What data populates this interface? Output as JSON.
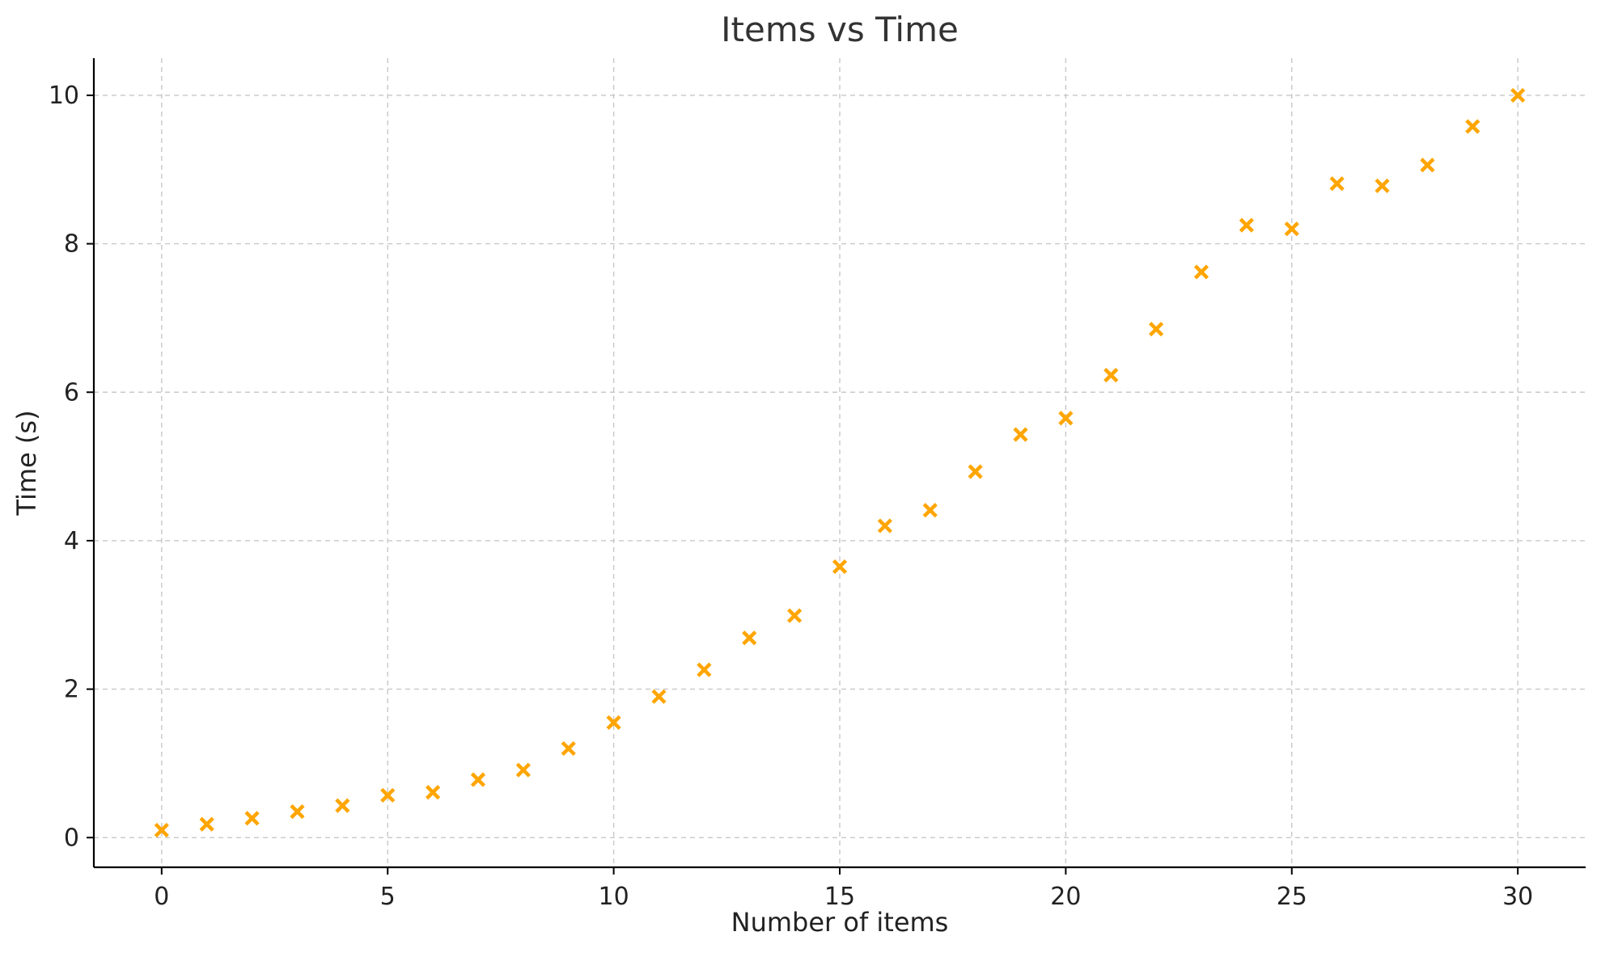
{
  "chart_data": {
    "type": "scatter",
    "title": "Items vs Time",
    "xlabel": "Number of items",
    "ylabel": "Time (s)",
    "xlim": [
      -1.5,
      31.5
    ],
    "ylim": [
      -0.4,
      10.5
    ],
    "xticks": [
      0,
      5,
      10,
      15,
      20,
      25,
      30
    ],
    "yticks": [
      0,
      2,
      4,
      6,
      8,
      10
    ],
    "grid": true,
    "marker": "x",
    "color": "#ffa500",
    "series": [
      {
        "x": [
          0,
          1,
          2,
          3,
          4,
          5,
          6,
          7,
          8,
          9,
          10,
          11,
          12,
          13,
          14,
          15,
          16,
          17,
          18,
          19,
          20,
          21,
          22,
          23,
          24,
          25,
          26,
          27,
          28,
          29,
          30
        ],
        "y": [
          0.1,
          0.18,
          0.26,
          0.35,
          0.43,
          0.57,
          0.61,
          0.78,
          0.91,
          1.2,
          1.55,
          1.9,
          2.26,
          2.69,
          2.99,
          3.65,
          4.2,
          4.41,
          4.93,
          5.43,
          5.65,
          6.23,
          6.85,
          7.62,
          8.25,
          8.2,
          8.81,
          8.78,
          9.06,
          9.58,
          10.0
        ]
      }
    ]
  }
}
